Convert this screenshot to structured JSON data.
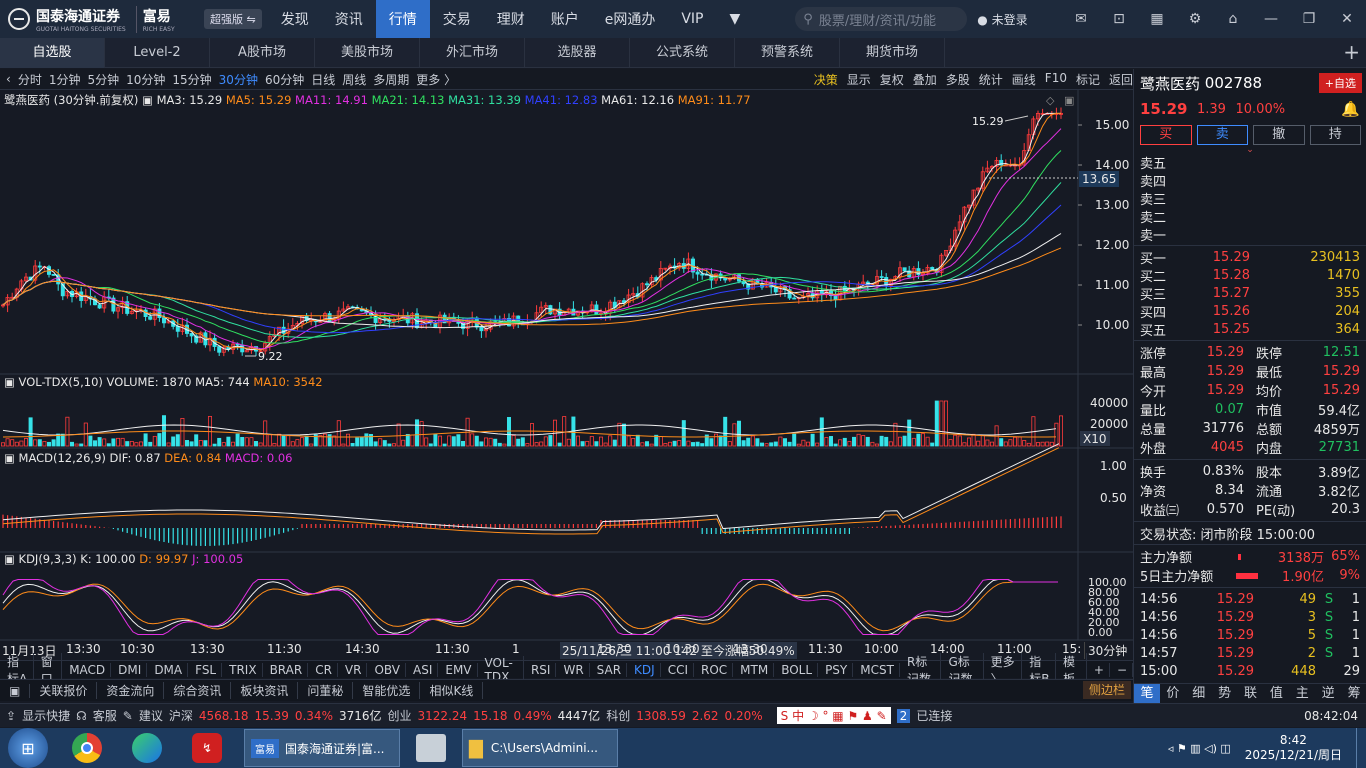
{
  "app": {
    "logo_cn": "国泰海通证券",
    "logo_en": "GUOTAI HAITONG SECURITIES",
    "brand": "富易",
    "brand_en": "RICH EASY",
    "edition": "超强版 ⇋"
  },
  "nav": [
    "发现",
    "资讯",
    "行情",
    "交易",
    "理财",
    "账户",
    "e网通办",
    "VIP",
    "▼"
  ],
  "search_placeholder": "股票/理财/资讯/功能",
  "login": "未登录",
  "tabs": [
    "自选股",
    "Level-2",
    "A股市场",
    "美股市场",
    "外汇市场",
    "选股器",
    "公式系统",
    "预警系统",
    "期货市场"
  ],
  "periods": [
    "分时",
    "1分钟",
    "5分钟",
    "10分钟",
    "15分钟",
    "30分钟",
    "60分钟",
    "日线",
    "周线",
    "多周期",
    "更多 〉"
  ],
  "chart_tools": [
    "决策",
    "显示",
    "复权",
    "叠加",
    "多股",
    "统计",
    "画线",
    "F10",
    "标记",
    "返回"
  ],
  "ma_header": {
    "name": "鹭燕医药 (30分钟.前复权)",
    "ma3": "MA3: 15.29",
    "ma5": "MA5: 15.29",
    "ma11": "MA11: 14.91",
    "ma21": "MA21: 14.13",
    "ma31": "MA31: 13.39",
    "ma41": "MA41: 12.83",
    "ma61": "MA61: 12.16",
    "ma91": "MA91: 11.77"
  },
  "price_axis": [
    "15.00",
    "14.00",
    "13.00",
    "12.00",
    "11.00",
    "10.00"
  ],
  "price_high_label": "15.29",
  "price_low_label": "9.22",
  "cursor_price": "13.65",
  "vol_header": {
    "name": "VOL-TDX(5,10)",
    "volume": "VOLUME: 1870",
    "ma5": "MA5: 744",
    "ma10": "MA10: 3542"
  },
  "vol_axis": [
    "40000",
    "20000"
  ],
  "vol_unit": "X10",
  "macd_header": {
    "name": "MACD(12,26,9)",
    "dif": "DIF: 0.87",
    "dea": "DEA: 0.84",
    "macd": "MACD: 0.06"
  },
  "macd_axis": [
    "1.00",
    "0.50"
  ],
  "kdj_header": {
    "name": "KDJ(9,3,3)",
    "k": "K: 100.00",
    "d": "D: 99.97",
    "j": "J: 100.05"
  },
  "kdj_axis": [
    "100.00",
    "80.00",
    "60.00",
    "40.00",
    "20.00",
    "0.00"
  ],
  "time_axis": [
    "11月13日",
    "13:30",
    "10:30",
    "13:30",
    "11:30",
    "14:30",
    "11:30",
    "1",
    "25/11/26/三 11:00 142 至今涨幅50.49%",
    "13:30",
    "10:30",
    "13:30",
    "11:30",
    "10:00",
    "14:00",
    "11:00",
    "15:"
  ],
  "time_axis_unit": "30分钟",
  "indicators": [
    "指标A",
    "窗口",
    "MACD",
    "DMI",
    "DMA",
    "FSL",
    "TRIX",
    "BRAR",
    "CR",
    "VR",
    "OBV",
    "ASI",
    "EMV",
    "VOL-TDX",
    "RSI",
    "WR",
    "SAR",
    "KDJ",
    "CCI",
    "ROC",
    "MTM",
    "BOLL",
    "PSY",
    "MCST",
    "R标记数",
    "G标记数",
    "更多 〉",
    "指标B",
    "模 板",
    "+",
    "−"
  ],
  "bottom_tabs": [
    "关联报价",
    "资金流向",
    "综合资讯",
    "板块资讯",
    "问董秘",
    "智能优选",
    "相似K线"
  ],
  "side_btn": "侧边栏",
  "stock": {
    "name": "鹭燕医药",
    "code": "002788",
    "add": "+自选",
    "price": "15.29",
    "change": "1.39",
    "pct": "10.00%"
  },
  "trade_btns": [
    "买",
    "卖",
    "撤",
    "持"
  ],
  "asks": [
    {
      "l": "卖五",
      "p": "",
      "v": ""
    },
    {
      "l": "卖四",
      "p": "",
      "v": ""
    },
    {
      "l": "卖三",
      "p": "",
      "v": ""
    },
    {
      "l": "卖二",
      "p": "",
      "v": ""
    },
    {
      "l": "卖一",
      "p": "",
      "v": ""
    }
  ],
  "bids": [
    {
      "l": "买一",
      "p": "15.29",
      "v": "230413"
    },
    {
      "l": "买二",
      "p": "15.28",
      "v": "1470"
    },
    {
      "l": "买三",
      "p": "15.27",
      "v": "355"
    },
    {
      "l": "买四",
      "p": "15.26",
      "v": "204"
    },
    {
      "l": "买五",
      "p": "15.25",
      "v": "364"
    }
  ],
  "stats1": [
    [
      "涨停",
      "15.29",
      "跌停",
      "12.51"
    ],
    [
      "最高",
      "15.29",
      "最低",
      "15.29"
    ],
    [
      "今开",
      "15.29",
      "均价",
      "15.29"
    ],
    [
      "量比",
      "0.07",
      "市值",
      "59.4亿"
    ],
    [
      "总量",
      "31776",
      "总额",
      "4859万"
    ],
    [
      "外盘",
      "4045",
      "内盘",
      "27731"
    ]
  ],
  "stats2": [
    [
      "换手",
      "0.83%",
      "股本",
      "3.89亿"
    ],
    [
      "净资",
      "8.34",
      "流通",
      "3.82亿"
    ],
    [
      "收益㈢",
      "0.570",
      "PE(动)",
      "20.3"
    ]
  ],
  "trade_status": "交易状态: 闭市阶段 15:00:00",
  "flow": [
    {
      "l": "主力净额",
      "v": "3138万",
      "p": "65%"
    },
    {
      "l": "5日主力净额",
      "v": "1.90亿",
      "p": "9%"
    }
  ],
  "ticks": [
    [
      "14:56",
      "15.29",
      "49",
      "S",
      "1"
    ],
    [
      "14:56",
      "15.29",
      "3",
      "S",
      "1"
    ],
    [
      "14:56",
      "15.29",
      "5",
      "S",
      "1"
    ],
    [
      "14:57",
      "15.29",
      "2",
      "S",
      "1"
    ],
    [
      "15:00",
      "15.29",
      "448",
      "",
      "29"
    ]
  ],
  "rp_tabs": [
    "笔",
    "价",
    "细",
    "势",
    "联",
    "值",
    "主",
    "逆",
    "筹"
  ],
  "status": {
    "shortcut": "显示快捷",
    "service": "客服",
    "suggest": "建议",
    "hs_label": "沪深",
    "hs": "4568.18",
    "hs_chg": "15.39",
    "hs_pct": "0.34%",
    "hs_amt": "3716亿",
    "cy_label": "创业",
    "cy": "3122.24",
    "cy_chg": "15.18",
    "cy_pct": "0.49%",
    "cy_amt": "4447亿",
    "kc_label": "科创",
    "kc": "1308.59",
    "kc_chg": "2.62",
    "kc_pct": "0.20%",
    "conn": "已连接",
    "time": "08:42:04"
  },
  "taskbar": {
    "app1": "国泰海通证券|富...",
    "app2": "C:\\Users\\Admini...",
    "time": "8:42",
    "date": "2025/12/21/周日"
  },
  "chart_data": {
    "type": "line",
    "note": "30-minute candlestick with MA lines",
    "price_range": [
      9.0,
      15.6
    ],
    "last_price": 15.29,
    "low": 9.22,
    "high": 15.29
  }
}
